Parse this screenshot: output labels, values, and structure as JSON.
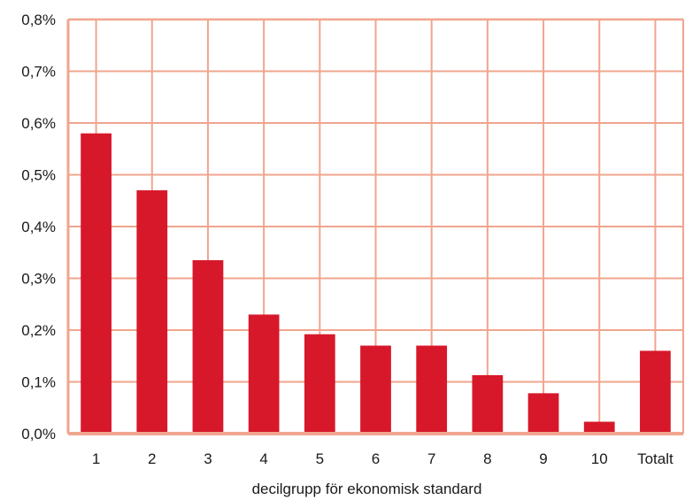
{
  "chart_data": {
    "type": "bar",
    "categories": [
      "1",
      "2",
      "3",
      "4",
      "5",
      "6",
      "7",
      "8",
      "9",
      "10",
      "Totalt"
    ],
    "values": [
      0.58,
      0.47,
      0.335,
      0.23,
      0.192,
      0.17,
      0.17,
      0.113,
      0.078,
      0.023,
      0.16
    ],
    "value_unit": "%",
    "ylim": [
      0,
      0.8
    ],
    "yticks": [
      0,
      0.1,
      0.2,
      0.3,
      0.4,
      0.5,
      0.6,
      0.7,
      0.8
    ],
    "ytick_labels": [
      "0,0%",
      "0,1%",
      "0,2%",
      "0,3%",
      "0,4%",
      "0,5%",
      "0,6%",
      "0,7%",
      "0,8%"
    ],
    "xlabel": "decilgrupp för ekonomisk standard",
    "ylabel": "",
    "title": "",
    "grid": true,
    "legend": false,
    "colors": {
      "bar": "#d7182a",
      "grid": "#f0a58e",
      "frame": "#f0a58e"
    }
  }
}
